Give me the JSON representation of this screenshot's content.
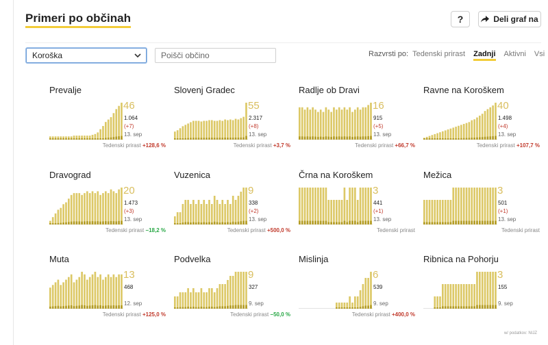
{
  "header": {
    "title": "Primeri po občinah",
    "help_label": "?",
    "share_label": "Deli graf na"
  },
  "controls": {
    "region_selected": "Koroška",
    "search_placeholder": "Poišči občino",
    "sort_label": "Razvrsti po:",
    "sort_options": [
      "Tedenski prirast",
      "Zadnji",
      "Aktivni",
      "Vsi"
    ],
    "sort_active": "Zadnji"
  },
  "colors": {
    "bar_light": "#dcc866",
    "bar_dark": "#b39c26",
    "big_number": "#d9be5e",
    "accent": "#f2cc38",
    "increase": "#c0392b",
    "decrease": "#27a744"
  },
  "chart_data": [
    {
      "type": "bar",
      "title": "Prevalje",
      "latest": "46",
      "total": "1.064",
      "change": "(+7)",
      "date": "13. sep",
      "weekly_label": "Tedenski prirast",
      "weekly": "+128,6 %",
      "weekly_dir": "up",
      "values": [
        4,
        4,
        4,
        4,
        4,
        4,
        4,
        4,
        4,
        5,
        5,
        5,
        5,
        5,
        5,
        5,
        6,
        7,
        9,
        13,
        17,
        22,
        25,
        28,
        33,
        38,
        42,
        46
      ]
    },
    {
      "type": "bar",
      "title": "Slovenj Gradec",
      "latest": "55",
      "total": "2.317",
      "change": "(+8)",
      "date": "13. sep",
      "weekly_label": "Tedenski prirast",
      "weekly": "+3,7 %",
      "weekly_dir": "up",
      "values": [
        12,
        14,
        17,
        20,
        22,
        24,
        26,
        28,
        28,
        28,
        27,
        28,
        28,
        29,
        29,
        28,
        28,
        29,
        28,
        30,
        29,
        30,
        29,
        31,
        30,
        32,
        34,
        55
      ]
    },
    {
      "type": "bar",
      "title": "Radlje ob Dravi",
      "latest": "16",
      "total": "915",
      "change": "(+5)",
      "date": "13. sep",
      "weekly_label": "Tedenski prirast",
      "weekly": "+66,7 %",
      "weekly_dir": "up",
      "values": [
        14,
        14,
        13,
        14,
        13,
        14,
        13,
        12,
        13,
        12,
        14,
        13,
        12,
        14,
        13,
        14,
        13,
        14,
        13,
        14,
        12,
        13,
        14,
        13,
        14,
        14,
        15,
        16
      ]
    },
    {
      "type": "bar",
      "title": "Ravne na Koroškem",
      "latest": "40",
      "total": "1.498",
      "change": "(+4)",
      "date": "13. sep",
      "weekly_label": "Tedenski prirast",
      "weekly": "+107,7 %",
      "weekly_dir": "up",
      "values": [
        2,
        3,
        4,
        5,
        6,
        7,
        8,
        9,
        10,
        11,
        12,
        13,
        14,
        15,
        16,
        17,
        18,
        19,
        21,
        22,
        24,
        26,
        28,
        31,
        33,
        35,
        37,
        40
      ]
    },
    {
      "type": "bar",
      "title": "Dravograd",
      "latest": "20",
      "total": "1.473",
      "change": "(+3)",
      "date": "13. sep",
      "weekly_label": "Tedenski prirast",
      "weekly": "−18,2 %",
      "weekly_dir": "down",
      "values": [
        2,
        4,
        6,
        8,
        9,
        11,
        12,
        14,
        16,
        17,
        17,
        17,
        16,
        17,
        18,
        17,
        18,
        17,
        18,
        16,
        17,
        18,
        17,
        19,
        18,
        17,
        19,
        20
      ]
    },
    {
      "type": "bar",
      "title": "Vuzenica",
      "latest": "9",
      "total": "338",
      "change": "(+2)",
      "date": "13. sep",
      "weekly_label": "Tedenski prirast",
      "weekly": "+500,0 %",
      "weekly_dir": "up",
      "values": [
        2,
        3,
        3,
        5,
        6,
        6,
        5,
        6,
        5,
        6,
        5,
        6,
        5,
        6,
        5,
        7,
        6,
        5,
        6,
        5,
        6,
        5,
        7,
        6,
        7,
        8,
        9,
        9
      ]
    },
    {
      "type": "bar",
      "title": "Črna na Koroškem",
      "latest": "3",
      "total": "441",
      "change": "(+1)",
      "date": "13. sep",
      "weekly_label": "Tedenski prirast",
      "weekly": "",
      "values": [
        3,
        3,
        3,
        3,
        3,
        3,
        3,
        3,
        3,
        3,
        3,
        2,
        2,
        2,
        2,
        2,
        2,
        3,
        2,
        3,
        3,
        3,
        2,
        3,
        3,
        3,
        3,
        3
      ]
    },
    {
      "type": "bar",
      "title": "Mežica",
      "latest": "3",
      "total": "501",
      "change": "(+1)",
      "date": "13. sep",
      "weekly_label": "Tedenski prirast",
      "weekly": "",
      "values": [
        2,
        2,
        2,
        2,
        2,
        2,
        2,
        2,
        2,
        2,
        2,
        3,
        3,
        3,
        3,
        3,
        3,
        3,
        3,
        3,
        3,
        3,
        3,
        3,
        3,
        3,
        3,
        3
      ]
    },
    {
      "type": "bar",
      "title": "Muta",
      "latest": "13",
      "total": "468",
      "change": "",
      "date": "12. sep",
      "weekly_label": "Tedenski prirast",
      "weekly": "+125,0 %",
      "weekly_dir": "up",
      "values": [
        8,
        9,
        10,
        11,
        9,
        10,
        11,
        12,
        13,
        10,
        11,
        12,
        14,
        13,
        11,
        12,
        13,
        14,
        12,
        13,
        11,
        12,
        13,
        12,
        13,
        12,
        13,
        13
      ]
    },
    {
      "type": "bar",
      "title": "Podvelka",
      "latest": "9",
      "total": "327",
      "change": "",
      "date": "9. sep",
      "weekly_label": "Tedenski prirast",
      "weekly": "−50,0 %",
      "weekly_dir": "down",
      "values": [
        3,
        3,
        4,
        4,
        4,
        5,
        4,
        5,
        4,
        4,
        5,
        4,
        4,
        5,
        5,
        4,
        5,
        6,
        6,
        6,
        7,
        8,
        8,
        9,
        9,
        9,
        9,
        9
      ]
    },
    {
      "type": "bar",
      "title": "Mislinja",
      "latest": "6",
      "total": "539",
      "change": "",
      "date": "9. sep",
      "weekly_label": "Tedenski prirast",
      "weekly": "+400,0 %",
      "weekly_dir": "up",
      "values": [
        0,
        0,
        0,
        0,
        0,
        0,
        0,
        0,
        0,
        0,
        0,
        0,
        0,
        0,
        1,
        1,
        1,
        1,
        1,
        2,
        1,
        2,
        2,
        3,
        4,
        5,
        5,
        6
      ]
    },
    {
      "type": "bar",
      "title": "Ribnica na Pohorju",
      "latest": "3",
      "total": "155",
      "change": "",
      "date": "9. sep",
      "weekly_label": "",
      "weekly": "",
      "values": [
        0,
        0,
        0,
        0,
        1,
        1,
        1,
        2,
        2,
        2,
        2,
        2,
        2,
        2,
        2,
        2,
        2,
        2,
        2,
        2,
        3,
        3,
        3,
        3,
        3,
        3,
        3,
        3
      ]
    }
  ],
  "footer": {
    "credit": "w/ podatkov: NIJZ"
  }
}
